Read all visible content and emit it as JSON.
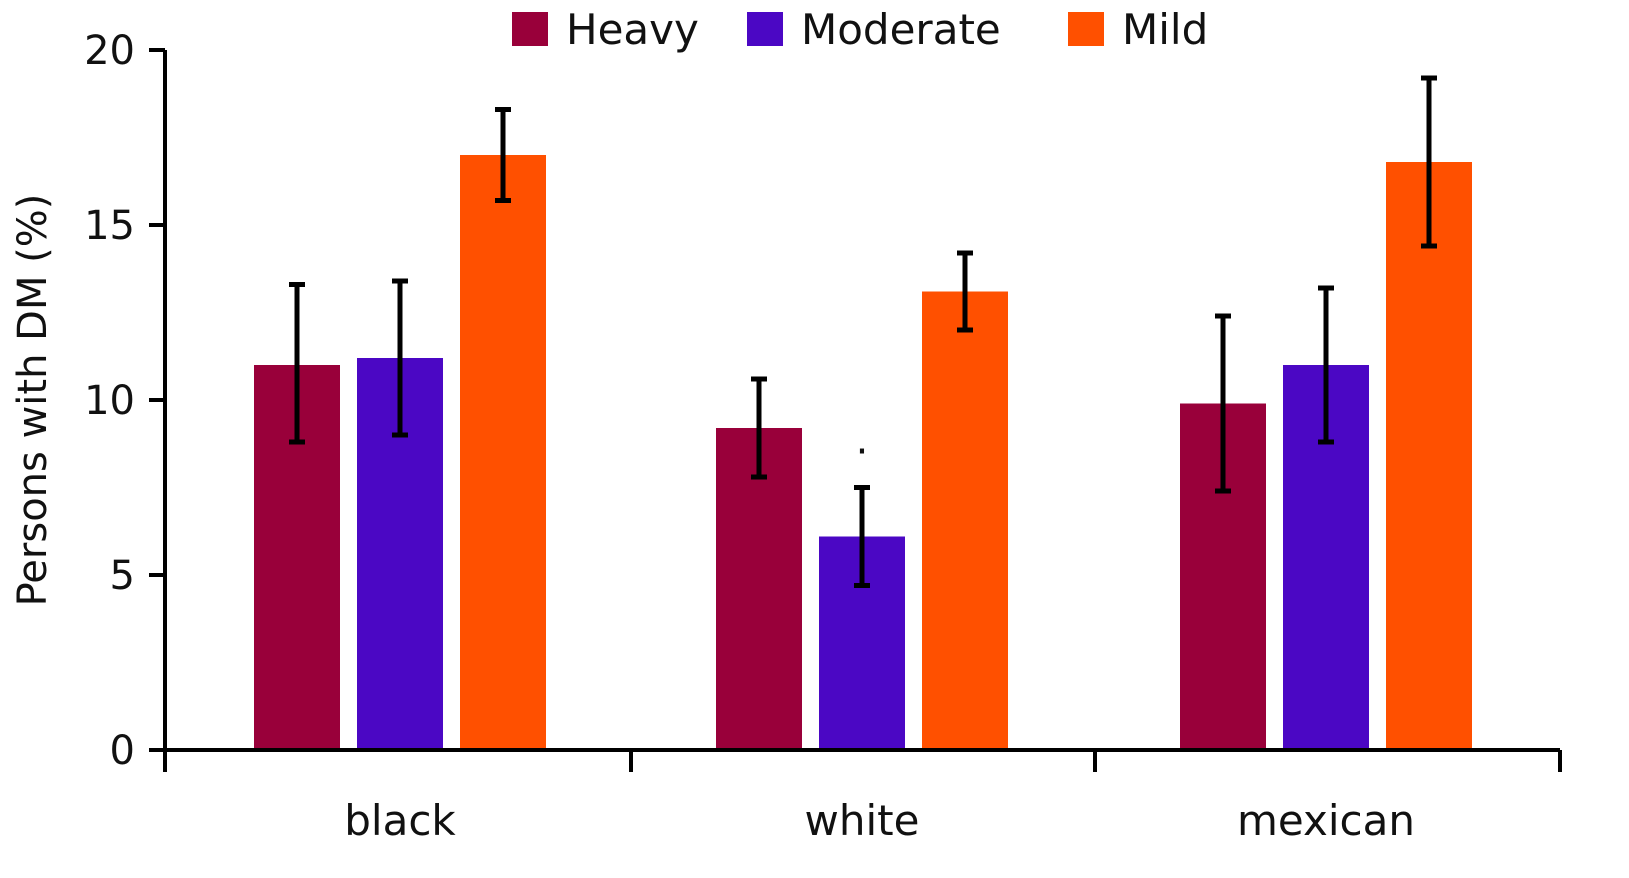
{
  "chart_data": {
    "type": "bar",
    "title": "",
    "xlabel": "",
    "ylabel": "Persons with DM (%)",
    "ylim": [
      0,
      20
    ],
    "yticks": [
      0,
      5,
      10,
      15,
      20
    ],
    "categories": [
      "black",
      "white",
      "mexican"
    ],
    "legend_position": "top",
    "series": [
      {
        "name": "Heavy",
        "color": "#99003a",
        "values": [
          11.0,
          9.2,
          9.9
        ],
        "error_low": [
          8.8,
          7.8,
          7.4
        ],
        "error_high": [
          13.3,
          10.6,
          12.4
        ]
      },
      {
        "name": "Moderate",
        "color": "#4b07c4",
        "values": [
          11.2,
          6.1,
          11.0
        ],
        "error_low": [
          9.0,
          4.7,
          8.8
        ],
        "error_high": [
          13.4,
          7.5,
          13.2
        ]
      },
      {
        "name": "Mild",
        "color": "#ff5000",
        "values": [
          17.0,
          13.1,
          16.8
        ],
        "error_low": [
          15.7,
          12.0,
          14.4
        ],
        "error_high": [
          18.3,
          14.2,
          19.2
        ]
      }
    ],
    "annotations": [
      {
        "text": ".",
        "category": "white",
        "series": "Moderate"
      }
    ]
  }
}
